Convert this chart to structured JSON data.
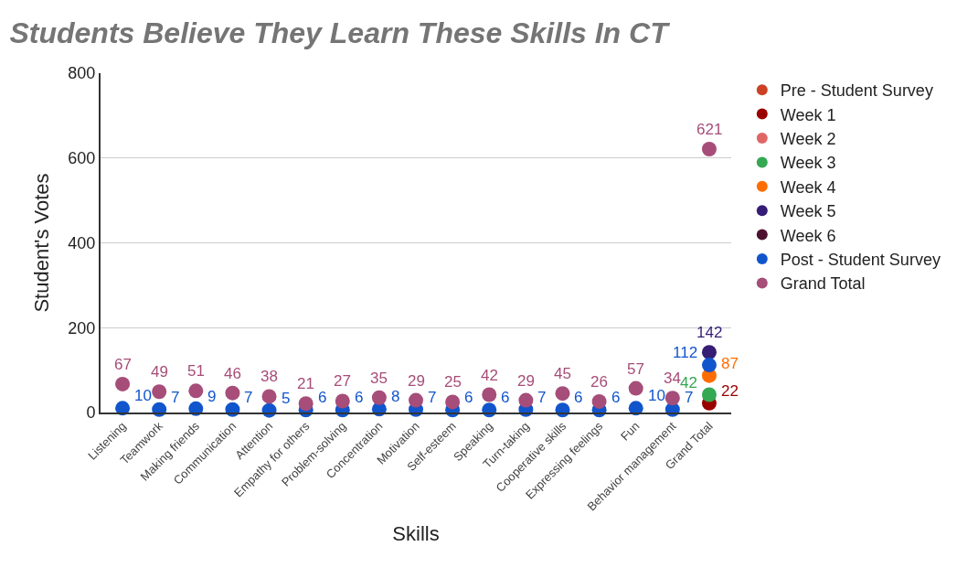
{
  "chart_data": {
    "type": "scatter",
    "title": "Students Believe They Learn These Skills In CT",
    "xlabel": "Skills",
    "ylabel": "Student's Votes",
    "categories": [
      "Listening",
      "Teamwork",
      "Making friends",
      "Communication",
      "Attention",
      "Empathy for others",
      "Problem-solving",
      "Concentration",
      "Motivation",
      "Self-esteem",
      "Speaking",
      "Turn-taking",
      "Cooperative skills",
      "Expressing feelings",
      "Fun",
      "Behavior management",
      "Grand Total"
    ],
    "series": [
      {
        "name": "Pre - Student Survey",
        "color": "#cc4125",
        "values": [
          null,
          null,
          null,
          null,
          null,
          null,
          null,
          null,
          null,
          null,
          null,
          null,
          null,
          null,
          null,
          null,
          null
        ]
      },
      {
        "name": "Week 1",
        "color": "#990000",
        "values": [
          null,
          null,
          null,
          null,
          null,
          null,
          null,
          null,
          null,
          null,
          null,
          null,
          null,
          null,
          null,
          null,
          22
        ]
      },
      {
        "name": "Week 2",
        "color": "#e06666",
        "values": [
          null,
          null,
          null,
          null,
          null,
          null,
          null,
          null,
          null,
          null,
          null,
          null,
          null,
          null,
          null,
          null,
          null
        ]
      },
      {
        "name": "Week 3",
        "color": "#34a853",
        "values": [
          null,
          null,
          null,
          null,
          null,
          null,
          null,
          null,
          null,
          null,
          null,
          null,
          null,
          null,
          null,
          null,
          42
        ]
      },
      {
        "name": "Week 4",
        "color": "#ff6d01",
        "values": [
          null,
          null,
          null,
          null,
          null,
          null,
          null,
          null,
          null,
          null,
          null,
          null,
          null,
          null,
          null,
          null,
          87
        ]
      },
      {
        "name": "Week 5",
        "color": "#351c75",
        "values": [
          null,
          null,
          null,
          null,
          null,
          null,
          null,
          null,
          null,
          null,
          null,
          null,
          null,
          null,
          null,
          null,
          142
        ]
      },
      {
        "name": "Week 6",
        "color": "#4c1130",
        "values": [
          null,
          null,
          null,
          null,
          null,
          null,
          null,
          null,
          null,
          null,
          null,
          null,
          null,
          null,
          null,
          null,
          null
        ]
      },
      {
        "name": "Post - Student Survey",
        "color": "#1155cc",
        "values": [
          10,
          7,
          9,
          7,
          5,
          6,
          6,
          8,
          7,
          6,
          6,
          7,
          6,
          6,
          10,
          7,
          112
        ]
      },
      {
        "name": "Grand Total",
        "color": "#a64d79",
        "values": [
          67,
          49,
          51,
          46,
          38,
          21,
          27,
          35,
          29,
          25,
          42,
          29,
          45,
          26,
          57,
          34,
          621
        ]
      }
    ],
    "ylim": [
      0,
      800
    ],
    "yticks": [
      0,
      200,
      400,
      600,
      800
    ],
    "grid": "y",
    "legend": "right",
    "marker": "circle",
    "data_labels": true
  }
}
